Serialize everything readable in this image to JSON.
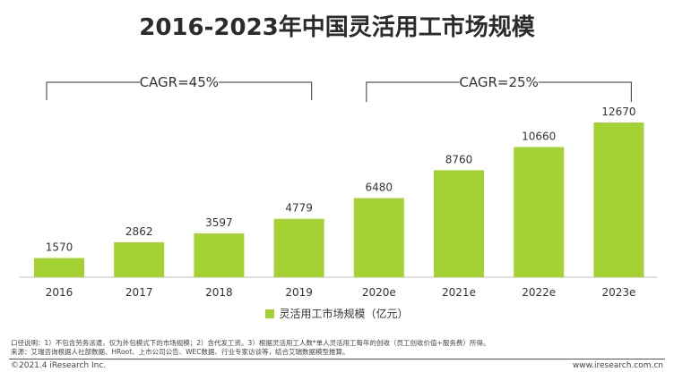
{
  "title": "2016-2023年中国灵活用工市场规模",
  "chart_data": {
    "type": "bar",
    "title": "2016-2023年中国灵活用工市场规模",
    "categories": [
      "2016",
      "2017",
      "2018",
      "2019",
      "2020e",
      "2021e",
      "2022e",
      "2023e"
    ],
    "series": [
      {
        "name": "灵活用工市场规模（亿元）",
        "values": [
          1570,
          2862,
          3597,
          4779,
          6480,
          8760,
          10660,
          12670
        ]
      }
    ],
    "ylim": [
      0,
      13000
    ],
    "grid": false,
    "legend_position": "bottom",
    "bar_color": "#a4d233",
    "annotations": [
      {
        "text": "CAGR=45%",
        "from": "2016",
        "to": "2019"
      },
      {
        "text": "CAGR=25%",
        "from": "2020e",
        "to": "2023e"
      }
    ]
  },
  "legend": {
    "label": "灵活用工市场规模（亿元）"
  },
  "notes": {
    "line1": "口径说明：1）不包含劳务派遣，仅为外包模式下的市场规模；2）含代发工资。3）根据灵活用工人数*单人灵活用工每年的创收（员工创收价值+服务费）所得。",
    "line2": "来源：艾瑞咨询根据人社部数据、HRoot、上市公司公告、WEC数据、行业专家访谈等，结合艾瑞数据模型推算。"
  },
  "footer": {
    "copyright": "©2021.4 iResearch Inc.",
    "website": "www.iresearch.com.cn"
  }
}
